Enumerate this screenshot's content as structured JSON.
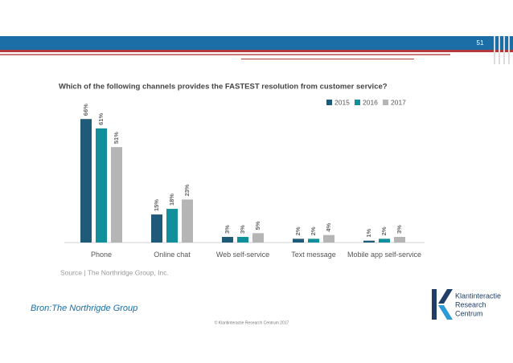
{
  "slide_number": "51",
  "chart_data": {
    "type": "bar",
    "title": "Which of the following channels provides the FASTEST resolution from customer service?",
    "categories": [
      "Phone",
      "Online chat",
      "Web self-service",
      "Text message",
      "Mobile app self-service"
    ],
    "series": [
      {
        "name": "2015",
        "color": "#1f5b78",
        "values": [
          66,
          15,
          3,
          2,
          1
        ],
        "value_labels": [
          "66%",
          "15%",
          "3%",
          "2%",
          "1%"
        ]
      },
      {
        "name": "2016",
        "color": "#11909b",
        "values": [
          61,
          18,
          3,
          2,
          2
        ],
        "value_labels": [
          "61%",
          "18%",
          "3%",
          "2%",
          "2%"
        ]
      },
      {
        "name": "2017",
        "color": "#b5b5b5",
        "values": [
          51,
          23,
          5,
          4,
          3
        ],
        "value_labels": [
          "51%",
          "23%",
          "5%",
          "4%",
          "3%"
        ]
      }
    ],
    "source": "Source | The Northridge Group, Inc."
  },
  "caption": "Bron:The Northrigde Group",
  "footer": "© Klantinteractie Research Centrum 2017",
  "logo": [
    "Klantinteractie",
    "Research",
    "Centrum"
  ]
}
